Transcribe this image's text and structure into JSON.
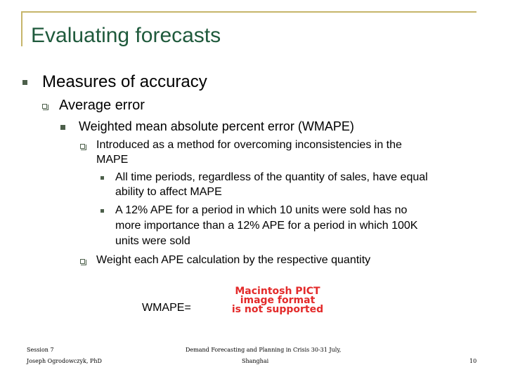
{
  "title": "Evaluating forecasts",
  "level1": "Measures of accuracy",
  "level2": "Average error",
  "level3": "Weighted mean absolute percent error (WMAPE)",
  "level4a_line1": "Introduced as a method for overcoming inconsistencies in the",
  "level4a_line2": "MAPE",
  "level5a_line1": "All time periods, regardless of the quantity of sales, have equal",
  "level5a_line2": "ability to affect MAPE",
  "level5b_line1": "A 12% APE for a period in which 10 units were sold has no",
  "level5b_line2": "more importance than a 12% APE for a period in which 100K",
  "level5b_line3": "units were sold",
  "level4b": "Weight each APE calculation by the respective quantity",
  "formula_label": "WMAPE=",
  "pict_placeholder": {
    "line1": "Macintosh PICT",
    "line2": "image format",
    "line3": "is not supported"
  },
  "footer": {
    "session": "Session 7",
    "author": "Joseph Ogrodowczyk, PhD",
    "event_line1": "Demand Forecasting and Planning in Crisis 30-31 July,",
    "event_line2": "Shanghai",
    "page_number": "10"
  }
}
